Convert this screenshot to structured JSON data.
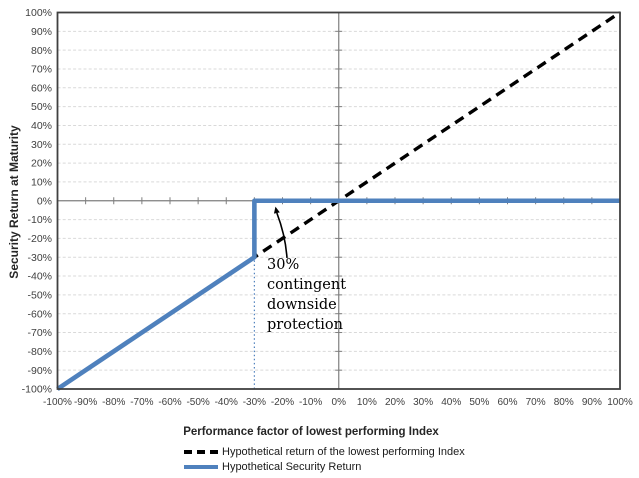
{
  "chart_data": {
    "type": "line",
    "title": "",
    "xlabel": "Performance factor of lowest performing Index",
    "ylabel": "Security Return at Maturity",
    "xlim": [
      -100,
      100
    ],
    "ylim": [
      -100,
      100
    ],
    "grid": "horizontal-only",
    "legend_position": "bottom",
    "colors": {
      "grid": "#d9d9d9",
      "zero_axis": "#7f7f7f",
      "border": "#404040",
      "tick_label": "#3f3f3f",
      "accent_blue": "#4F81BD",
      "line_black": "#000000"
    },
    "ticks": {
      "x": {
        "values": [
          -100,
          -90,
          -80,
          -70,
          -60,
          -50,
          -40,
          -30,
          -20,
          -10,
          0,
          10,
          20,
          30,
          40,
          50,
          60,
          70,
          80,
          90,
          100
        ],
        "labels": [
          "-100%",
          "-90%",
          "-80%",
          "-70%",
          "-60%",
          "-50%",
          "-40%",
          "-30%",
          "-20%",
          "-10%",
          "0%",
          "10%",
          "20%",
          "30%",
          "40%",
          "50%",
          "60%",
          "70%",
          "80%",
          "90%",
          "100%"
        ]
      },
      "y": {
        "values": [
          100,
          90,
          80,
          70,
          60,
          50,
          40,
          30,
          20,
          10,
          0,
          -10,
          -20,
          -30,
          -40,
          -50,
          -60,
          -70,
          -80,
          -90,
          -100
        ],
        "labels": [
          "100%",
          "90%",
          "80%",
          "70%",
          "60%",
          "50%",
          "40%",
          "30%",
          "20%",
          "10%",
          "0%",
          "-10%",
          "-20%",
          "-30%",
          "-40%",
          "-50%",
          "-60%",
          "-70%",
          "-80%",
          "-90%",
          "-100%"
        ]
      }
    },
    "series": [
      {
        "name": "Hypothetical return of the lowest performing Index",
        "style": "dashed",
        "color": "#000000",
        "points": [
          [
            -100,
            -100
          ],
          [
            100,
            100
          ]
        ]
      },
      {
        "name": "Hypothetical Security Return",
        "style": "solid",
        "color": "#4F81BD",
        "points": [
          [
            -100,
            -100
          ],
          [
            -30,
            -30
          ],
          [
            -30,
            0
          ],
          [
            100,
            0
          ]
        ]
      }
    ],
    "reference_line": {
      "x": -30,
      "from_y": -100,
      "to_y": -30,
      "style": "dotted",
      "color": "#4F81BD"
    },
    "annotation": {
      "text": "30% contingent downside protection",
      "lines": [
        "30%",
        "contingent",
        "downside",
        "protection"
      ],
      "arrow": {
        "from_x": -18.4,
        "from_y": -30.4,
        "to_x": -22.0,
        "to_y": -6.5
      }
    }
  }
}
